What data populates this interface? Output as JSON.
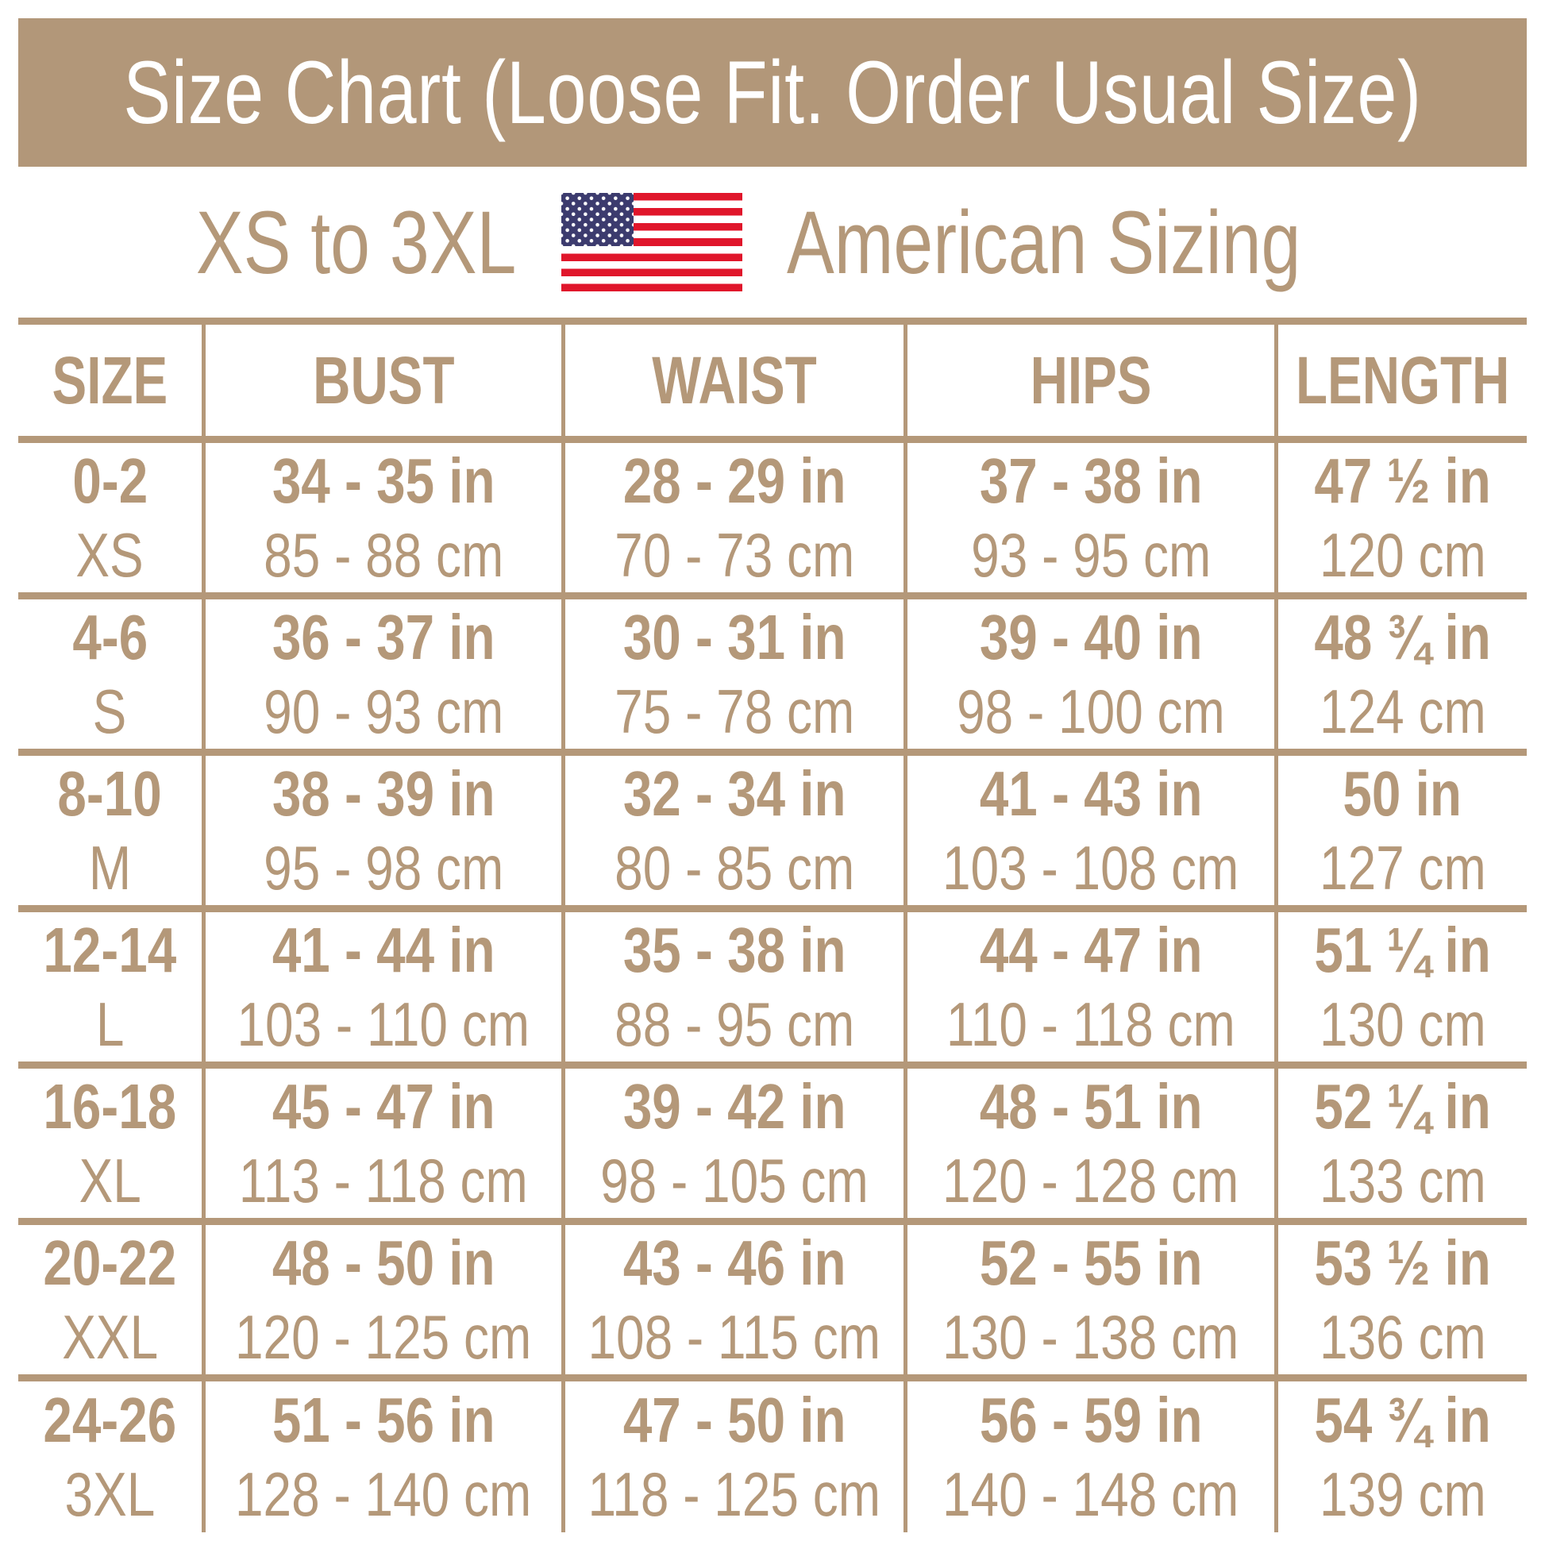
{
  "banner": {
    "title": "Size Chart (Loose Fit. Order Usual Size)"
  },
  "subtitle": {
    "range": "XS to 3XL",
    "label": "American Sizing"
  },
  "icons": {
    "flag": "us-flag"
  },
  "colors": {
    "banner_bg": "#b29779",
    "accent_tan": "#b49879",
    "banner_text": "#ffffff",
    "flag_red": "#e0162b",
    "flag_blue": "#3c3b6e"
  },
  "chart_data": {
    "type": "table",
    "title": "Size Chart (Loose Fit. Order Usual Size)",
    "subtitle": "XS to 3XL / American Sizing",
    "columns": [
      "SIZE",
      "BUST",
      "WAIST",
      "HIPS",
      "LENGTH"
    ],
    "rows": [
      {
        "size": "0-2",
        "label": "XS",
        "bust_in": "34 - 35 in",
        "bust_cm": "85 - 88 cm",
        "waist_in": "28 - 29 in",
        "waist_cm": "70 - 73 cm",
        "hips_in": "37 - 38 in",
        "hips_cm": "93 - 95 cm",
        "length_in": "47 ½ in",
        "length_cm": "120 cm"
      },
      {
        "size": "4-6",
        "label": "S",
        "bust_in": "36 - 37 in",
        "bust_cm": "90 - 93 cm",
        "waist_in": "30 - 31 in",
        "waist_cm": "75 - 78 cm",
        "hips_in": "39 - 40 in",
        "hips_cm": "98 - 100 cm",
        "length_in": "48 ¾ in",
        "length_cm": "124 cm"
      },
      {
        "size": "8-10",
        "label": "M",
        "bust_in": "38 - 39 in",
        "bust_cm": "95 - 98 cm",
        "waist_in": "32 - 34 in",
        "waist_cm": "80 - 85 cm",
        "hips_in": "41 - 43 in",
        "hips_cm": "103 - 108 cm",
        "length_in": "50 in",
        "length_cm": "127 cm"
      },
      {
        "size": "12-14",
        "label": "L",
        "bust_in": "41 - 44 in",
        "bust_cm": "103 - 110 cm",
        "waist_in": "35 - 38 in",
        "waist_cm": "88 - 95 cm",
        "hips_in": "44 - 47 in",
        "hips_cm": "110 - 118 cm",
        "length_in": "51 ¼ in",
        "length_cm": "130 cm"
      },
      {
        "size": "16-18",
        "label": "XL",
        "bust_in": "45 - 47 in",
        "bust_cm": "113 - 118 cm",
        "waist_in": "39 - 42 in",
        "waist_cm": "98 - 105 cm",
        "hips_in": "48 - 51 in",
        "hips_cm": "120 - 128 cm",
        "length_in": "52 ¼ in",
        "length_cm": "133 cm"
      },
      {
        "size": "20-22",
        "label": "XXL",
        "bust_in": "48 - 50 in",
        "bust_cm": "120 - 125 cm",
        "waist_in": "43 - 46 in",
        "waist_cm": "108 - 115 cm",
        "hips_in": "52 - 55 in",
        "hips_cm": "130 - 138 cm",
        "length_in": "53 ½ in",
        "length_cm": "136 cm"
      },
      {
        "size": "24-26",
        "label": "3XL",
        "bust_in": "51 - 56 in",
        "bust_cm": "128 - 140 cm",
        "waist_in": "47 - 50 in",
        "waist_cm": "118 - 125 cm",
        "hips_in": "56 - 59 in",
        "hips_cm": "140 - 148 cm",
        "length_in": "54 ¾ in",
        "length_cm": "139 cm"
      }
    ]
  }
}
